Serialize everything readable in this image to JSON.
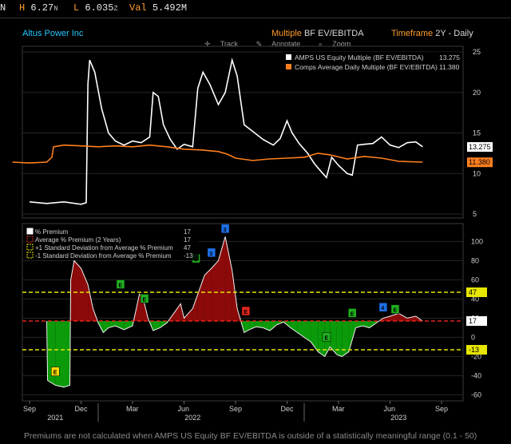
{
  "quote_bar": {
    "high_label": "H",
    "high_value": "6.27",
    "high_suffix": "N",
    "low_label": "L",
    "low_value": "6.035",
    "low_suffix": "Z",
    "vol_label": "Val",
    "vol_value": "5.492M",
    "left_label": "N"
  },
  "header": {
    "company": "Altus Power Inc",
    "multiple_label": "Multiple",
    "multiple_value": "BF EV/EBITDA",
    "timeframe_label": "Timeframe",
    "timeframe_value": "2Y - Daily"
  },
  "tools": {
    "track": "Track",
    "annotate": "Annotate",
    "zoom": "Zoom"
  },
  "footnote": "Premiums are not calculated when AMPS US Equity BF EV/EBITDA is outside of a statistically meaningful range (0.1 - 50)",
  "colors": {
    "white": "#ffffff",
    "orange": "#ff7f1e",
    "red_fill": "#8c0a0a",
    "green_fill": "#0a9a0a",
    "stdev": "#e6e600",
    "avg": "#e0261c"
  },
  "chart_data": [
    {
      "type": "line",
      "ylim": [
        4,
        26
      ],
      "yticks": [
        5,
        10,
        15,
        20,
        25
      ],
      "legend_position": "top-right",
      "series": [
        {
          "name": "AMPS US Equity Multiple (BF EV/EBITDA)",
          "last": "13.275",
          "points": [
            [
              0,
              6.5
            ],
            [
              1,
              6.3
            ],
            [
              2,
              6.5
            ],
            [
              3,
              6.2
            ],
            [
              3.3,
              6.4
            ],
            [
              3.4,
              21
            ],
            [
              3.5,
              24
            ],
            [
              3.8,
              22.5
            ],
            [
              4.2,
              18
            ],
            [
              4.6,
              15
            ],
            [
              5,
              14
            ],
            [
              5.5,
              13.5
            ],
            [
              6,
              14
            ],
            [
              6.5,
              13.8
            ],
            [
              7,
              14.5
            ],
            [
              7.2,
              20
            ],
            [
              7.5,
              19.5
            ],
            [
              7.8,
              16
            ],
            [
              8.2,
              14.2
            ],
            [
              8.6,
              13
            ],
            [
              9,
              13.6
            ],
            [
              9.5,
              13.3
            ],
            [
              9.8,
              20.5
            ],
            [
              10.1,
              22.5
            ],
            [
              10.5,
              21
            ],
            [
              11,
              18.5
            ],
            [
              11.4,
              20
            ],
            [
              11.8,
              24
            ],
            [
              12.1,
              22
            ],
            [
              12.5,
              16
            ],
            [
              13,
              15.2
            ],
            [
              13.6,
              14.2
            ],
            [
              14.2,
              13.5
            ],
            [
              14.6,
              14.3
            ],
            [
              15,
              16.5
            ],
            [
              15.3,
              15
            ],
            [
              15.7,
              13.7
            ],
            [
              16.2,
              12.5
            ],
            [
              16.6,
              11.2
            ],
            [
              17,
              10.2
            ],
            [
              17.3,
              9.5
            ],
            [
              17.6,
              12
            ],
            [
              18,
              11
            ],
            [
              18.5,
              10
            ],
            [
              18.8,
              9.8
            ],
            [
              19.1,
              13.5
            ],
            [
              19.5,
              13.6
            ],
            [
              20,
              13.7
            ],
            [
              20.5,
              14.5
            ],
            [
              21,
              13.5
            ],
            [
              21.5,
              13.2
            ],
            [
              22,
              13.8
            ],
            [
              22.5,
              13.9
            ],
            [
              22.9,
              13.3
            ]
          ]
        },
        {
          "name": "Comps Average Daily Multiple (BF EV/EBITDA)",
          "last": "11.380",
          "points": [
            [
              -1,
              11.4
            ],
            [
              0,
              11.3
            ],
            [
              1,
              11.4
            ],
            [
              1.3,
              12
            ],
            [
              1.4,
              13.3
            ],
            [
              2,
              13.5
            ],
            [
              3,
              13.4
            ],
            [
              4,
              13.3
            ],
            [
              5,
              13.4
            ],
            [
              6,
              13.3
            ],
            [
              7,
              13.5
            ],
            [
              8,
              13.3
            ],
            [
              9,
              13
            ],
            [
              10,
              12.9
            ],
            [
              11,
              12.7
            ],
            [
              11.5,
              12.4
            ],
            [
              12,
              11.9
            ],
            [
              13,
              11.6
            ],
            [
              14,
              11.8
            ],
            [
              15,
              11.9
            ],
            [
              16,
              12
            ],
            [
              16.8,
              12.5
            ],
            [
              17.5,
              12.3
            ],
            [
              18.5,
              11.8
            ],
            [
              19.5,
              12.1
            ],
            [
              20.5,
              11.9
            ],
            [
              21.5,
              11.5
            ],
            [
              22.9,
              11.4
            ]
          ]
        }
      ]
    },
    {
      "type": "area",
      "ylim": [
        -65,
        115
      ],
      "yticks": [
        -60,
        -40,
        -20,
        0,
        20,
        40,
        60,
        80,
        100
      ],
      "x_tick_labels": [
        "Sep",
        "Dec",
        "Mar",
        "Jun",
        "Sep",
        "Dec",
        "Mar",
        "Jun",
        "Sep"
      ],
      "year_labels": [
        "2021",
        "2022",
        "2023"
      ],
      "legend_position": "top-left",
      "legend_entries": [
        {
          "name": "% Premium",
          "value": "17"
        },
        {
          "name": "Average % Premium (2 Years)",
          "value": "17"
        },
        {
          "name": "+1 Standard Deviation from Average % Premium",
          "value": "47"
        },
        {
          "name": "-1 Standard Deviation from Average % Premium",
          "value": "-13"
        }
      ],
      "average": 17,
      "plus_1sd": 47,
      "minus_1sd": -13,
      "right_labels": [
        "47",
        "17",
        "-13"
      ],
      "series": [
        {
          "name": "% Premium",
          "points": [
            [
              1,
              17
            ],
            [
              1.05,
              -45
            ],
            [
              1.5,
              -50
            ],
            [
              2,
              -52
            ],
            [
              2.35,
              -50
            ],
            [
              2.4,
              60
            ],
            [
              2.6,
              80
            ],
            [
              3,
              72
            ],
            [
              3.4,
              55
            ],
            [
              3.7,
              30
            ],
            [
              4,
              15
            ],
            [
              4.3,
              5
            ],
            [
              4.6,
              10
            ],
            [
              5,
              12
            ],
            [
              5.5,
              8
            ],
            [
              6,
              12
            ],
            [
              6.4,
              45
            ],
            [
              6.6,
              42
            ],
            [
              6.9,
              20
            ],
            [
              7.2,
              7
            ],
            [
              7.6,
              10
            ],
            [
              8,
              15
            ],
            [
              8.4,
              25
            ],
            [
              8.8,
              35
            ],
            [
              9,
              20
            ],
            [
              9.5,
              30
            ],
            [
              9.8,
              45
            ],
            [
              10.2,
              65
            ],
            [
              10.6,
              72
            ],
            [
              11,
              80
            ],
            [
              11.4,
              105
            ],
            [
              11.8,
              70
            ],
            [
              12.1,
              30
            ],
            [
              12.5,
              5
            ],
            [
              12.8,
              8
            ],
            [
              13.2,
              11
            ],
            [
              13.6,
              10
            ],
            [
              14,
              7
            ],
            [
              14.4,
              13
            ],
            [
              14.8,
              16
            ],
            [
              15.2,
              10
            ],
            [
              15.6,
              5
            ],
            [
              16,
              0
            ],
            [
              16.4,
              -5
            ],
            [
              16.8,
              -15
            ],
            [
              17.2,
              -20
            ],
            [
              17.5,
              -10
            ],
            [
              17.9,
              -18
            ],
            [
              18.2,
              -20
            ],
            [
              18.6,
              -15
            ],
            [
              19,
              10
            ],
            [
              19.4,
              12
            ],
            [
              19.8,
              10
            ],
            [
              20.2,
              15
            ],
            [
              20.6,
              20
            ],
            [
              21,
              22
            ],
            [
              21.5,
              25
            ],
            [
              22,
              20
            ],
            [
              22.5,
              22
            ],
            [
              22.9,
              17
            ]
          ]
        }
      ],
      "event_markers": [
        {
          "label": "E",
          "x": 1.5,
          "y": -36,
          "color": "#ffd700"
        },
        {
          "label": "E",
          "x": 5.3,
          "y": 55,
          "color": "#20b020"
        },
        {
          "label": "E",
          "x": 6.7,
          "y": 40,
          "color": "#20b020"
        },
        {
          "label": "E",
          "x": 9.7,
          "y": 82,
          "color": "#20b020"
        },
        {
          "label": "3",
          "x": 10.6,
          "y": 88,
          "color": "#1e6fe6"
        },
        {
          "label": "3",
          "x": 11.4,
          "y": 113,
          "color": "#1e6fe6"
        },
        {
          "label": "E",
          "x": 12.6,
          "y": 27,
          "color": "#e0261c"
        },
        {
          "label": "E",
          "x": 17.3,
          "y": 0,
          "color": "#20b020"
        },
        {
          "label": "E",
          "x": 18.8,
          "y": 25,
          "color": "#20b020"
        },
        {
          "label": "4",
          "x": 20.6,
          "y": 31,
          "color": "#1e6fe6"
        },
        {
          "label": "E",
          "x": 21.3,
          "y": 29,
          "color": "#20b020"
        }
      ]
    }
  ]
}
